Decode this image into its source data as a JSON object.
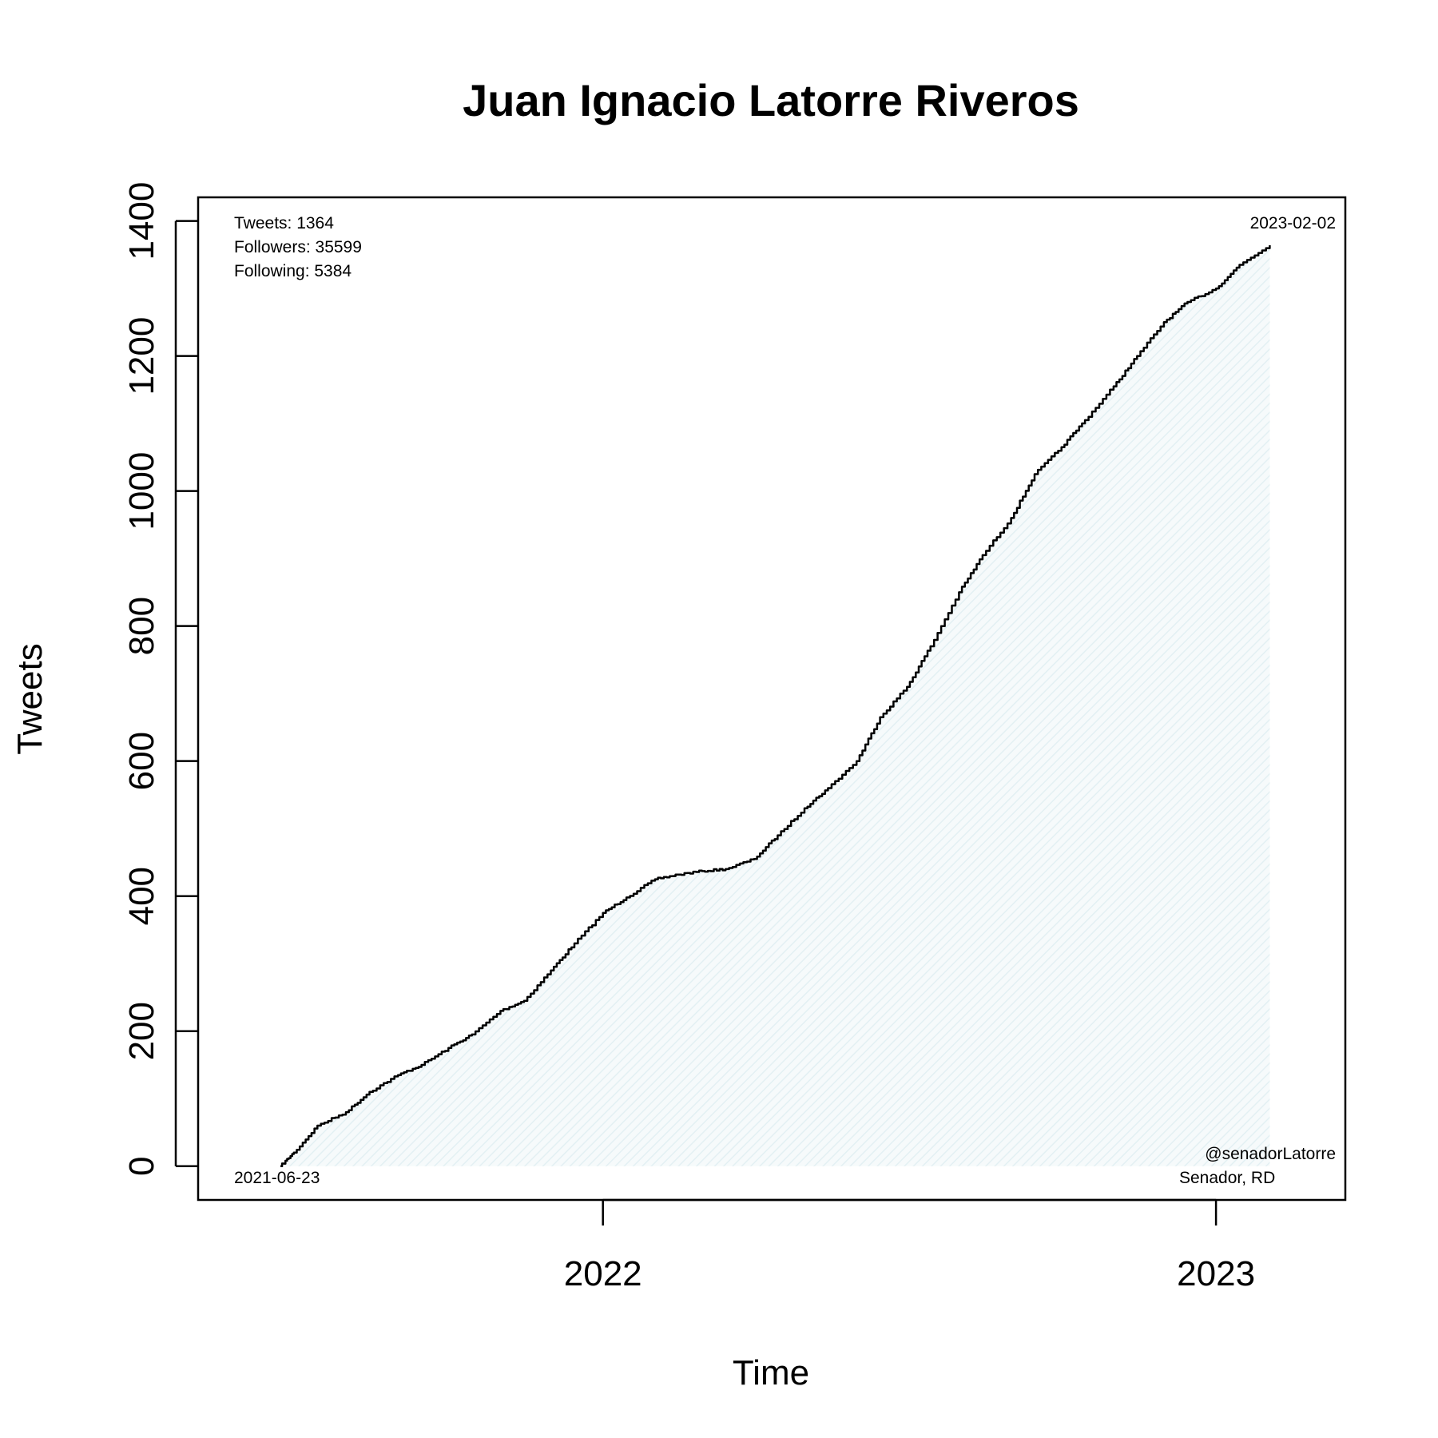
{
  "chart_data": {
    "type": "area",
    "title": "Juan Ignacio Latorre Riveros",
    "xlabel": "Time",
    "ylabel": "Tweets",
    "ylim": [
      -50,
      1435
    ],
    "xlim": [
      "2021-05-05",
      "2023-03-19"
    ],
    "yticks": [
      0,
      200,
      400,
      600,
      800,
      1000,
      1200,
      1400
    ],
    "xticks": [
      {
        "date": "2022-01-01",
        "label": "2022"
      },
      {
        "date": "2023-01-01",
        "label": "2023"
      }
    ],
    "grid": false,
    "fill_color": "#e6f1f4",
    "line_color": "#000000",
    "annotations": {
      "top_left": [
        "Tweets: 1364",
        "Followers: 35599",
        "Following: 5384"
      ],
      "top_right": "2023-02-02",
      "bottom_left": "2021-06-23",
      "bottom_right": [
        "@senadorLatorre",
        "Senador, RD"
      ]
    },
    "series": [
      {
        "points": [
          [
            "2021-06-23",
            0
          ],
          [
            "2021-07-01",
            20
          ],
          [
            "2021-07-15",
            60
          ],
          [
            "2021-08-01",
            80
          ],
          [
            "2021-08-15",
            110
          ],
          [
            "2021-09-01",
            135
          ],
          [
            "2021-09-15",
            150
          ],
          [
            "2021-10-01",
            175
          ],
          [
            "2021-10-15",
            195
          ],
          [
            "2021-11-01",
            230
          ],
          [
            "2021-11-15",
            245
          ],
          [
            "2021-12-01",
            290
          ],
          [
            "2021-12-15",
            330
          ],
          [
            "2022-01-01",
            375
          ],
          [
            "2022-01-15",
            398
          ],
          [
            "2022-02-01",
            425
          ],
          [
            "2022-02-15",
            432
          ],
          [
            "2022-03-01",
            437
          ],
          [
            "2022-03-15",
            440
          ],
          [
            "2022-04-01",
            455
          ],
          [
            "2022-04-15",
            490
          ],
          [
            "2022-05-01",
            530
          ],
          [
            "2022-05-15",
            560
          ],
          [
            "2022-06-01",
            600
          ],
          [
            "2022-06-15",
            665
          ],
          [
            "2022-07-01",
            710
          ],
          [
            "2022-07-15",
            770
          ],
          [
            "2022-08-01",
            850
          ],
          [
            "2022-08-15",
            905
          ],
          [
            "2022-09-01",
            960
          ],
          [
            "2022-09-15",
            1025
          ],
          [
            "2022-10-01",
            1065
          ],
          [
            "2022-10-15",
            1105
          ],
          [
            "2022-11-01",
            1155
          ],
          [
            "2022-11-15",
            1200
          ],
          [
            "2022-12-01",
            1250
          ],
          [
            "2022-12-15",
            1280
          ],
          [
            "2023-01-01",
            1300
          ],
          [
            "2023-01-15",
            1335
          ],
          [
            "2023-02-02",
            1364
          ]
        ]
      }
    ]
  }
}
